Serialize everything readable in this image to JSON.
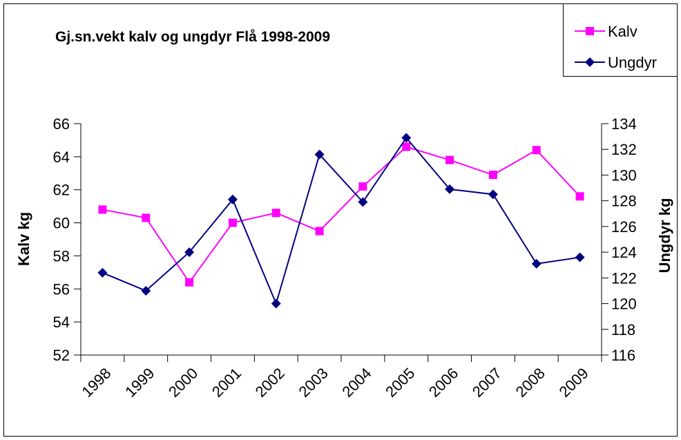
{
  "chart_data": {
    "type": "line",
    "title": "Gj.sn.vekt kalv og ungdyr Flå 1998-2009",
    "y_label": "Kalv kg",
    "y2_label": "Ungdyr kg",
    "categories": [
      "1998",
      "1999",
      "2000",
      "2001",
      "2002",
      "2003",
      "2004",
      "2005",
      "2006",
      "2007",
      "2008",
      "2009"
    ],
    "series": [
      {
        "name": "Kalv",
        "color": "#ff00ff",
        "marker": "square",
        "values": [
          60.8,
          60.3,
          56.4,
          60.0,
          60.6,
          59.5,
          62.2,
          64.6,
          63.8,
          62.9,
          64.4,
          61.6
        ]
      },
      {
        "name": "Ungdyr",
        "color": "#000080",
        "marker": "diamond",
        "axis": "y2",
        "values": [
          122.4,
          121.0,
          124.0,
          128.1,
          120.0,
          131.6,
          127.9,
          132.9,
          128.9,
          128.5,
          123.1,
          123.6
        ]
      }
    ],
    "ylim": [
      52,
      66
    ],
    "yticks": [
      52,
      54,
      56,
      58,
      60,
      62,
      64,
      66
    ],
    "y2lim": [
      116,
      134
    ],
    "y2ticks": [
      116,
      118,
      120,
      122,
      124,
      126,
      128,
      130,
      132,
      134
    ],
    "legend": "top-right"
  }
}
